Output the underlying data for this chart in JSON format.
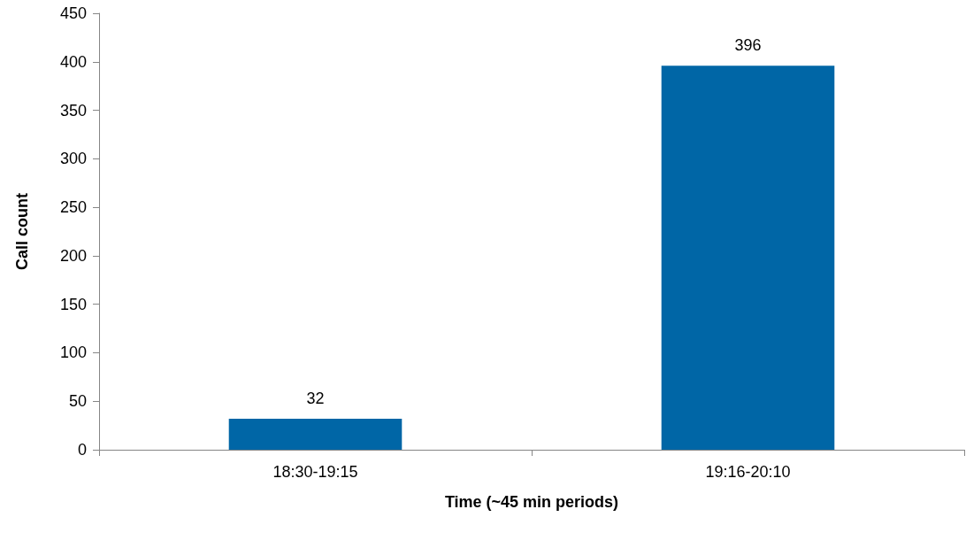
{
  "chart_data": {
    "type": "bar",
    "xlabel": "Time (~45 min periods)",
    "ylabel": "Call count",
    "categories": [
      "18:30-19:15",
      "19:16-20:10"
    ],
    "values": [
      32,
      396
    ],
    "color": "#0066a6",
    "ylim": [
      0,
      450
    ],
    "yticks": [
      0,
      50,
      100,
      150,
      200,
      250,
      300,
      350,
      400,
      450
    ],
    "grid": false,
    "data_labels": true
  }
}
